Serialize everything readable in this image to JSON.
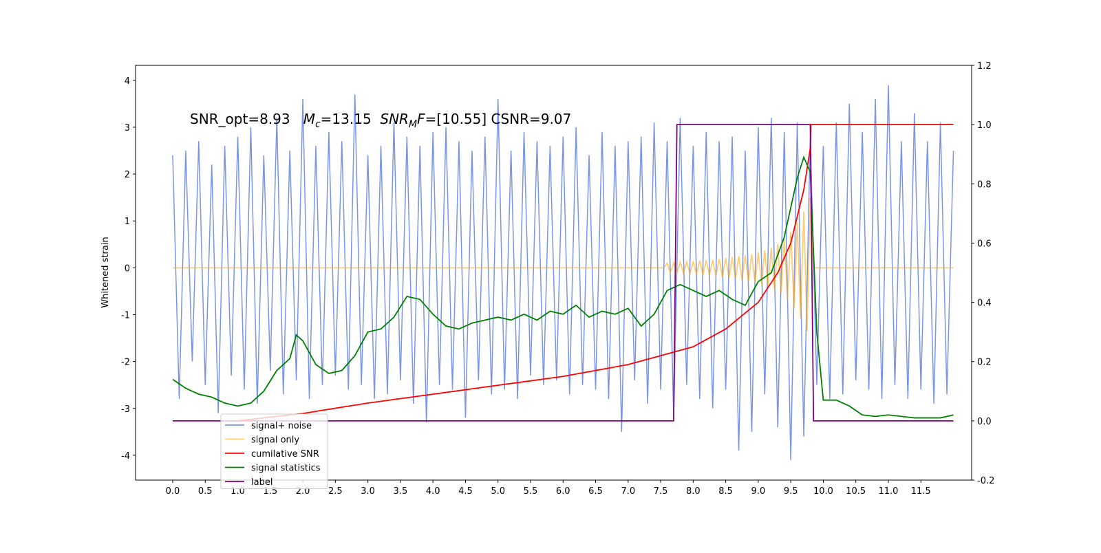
{
  "chart_data": {
    "type": "line",
    "annotation_parts": [
      "SNR_opt=8.93   ",
      "M",
      "c",
      "=13.15  ",
      "SNR",
      "M",
      "F",
      "=[10.55] CSNR=9.07"
    ],
    "ylabel": "Whitened strain",
    "xlim": [
      -0.571,
      12.28
    ],
    "ylim": [
      -4.53,
      4.32
    ],
    "y2lim": [
      -0.2,
      1.2
    ],
    "xticks": [
      {
        "value": 0,
        "label": "0.0"
      },
      0.5,
      {
        "value": 1,
        "label": "1.0"
      },
      1.5,
      {
        "value": 2,
        "label": "2.0"
      },
      2.5,
      {
        "value": 3,
        "label": "3.0"
      },
      3.5,
      {
        "value": 4,
        "label": "4.0"
      },
      4.5,
      {
        "value": 5,
        "label": "5.0"
      },
      5.5,
      {
        "value": 6,
        "label": "6.0"
      },
      6.5,
      {
        "value": 7,
        "label": "7.0"
      },
      7.5,
      {
        "value": 8,
        "label": "8.0"
      },
      8.5,
      {
        "value": 9,
        "label": "9.0"
      },
      9.5,
      {
        "value": 10,
        "label": "10.0"
      },
      10.5,
      {
        "value": 11,
        "label": "11.0"
      },
      11.5
    ],
    "yticks": [
      -4,
      -3,
      -2,
      -1,
      0,
      1,
      2,
      3,
      4
    ],
    "y2ticks": [
      -0.2,
      {
        "value": 0,
        "label": "0.0"
      },
      0.2,
      0.4,
      0.6,
      0.8,
      {
        "value": 1,
        "label": "1.0"
      },
      1.2
    ],
    "legend": "lower left",
    "series": [
      {
        "name": "signal+ noise",
        "color": "#7a94e8",
        "axis": "y",
        "x": [
          0.0,
          0.1,
          0.2,
          0.3,
          0.4,
          0.5,
          0.6,
          0.7,
          0.8,
          0.9,
          1.0,
          1.1,
          1.2,
          1.3,
          1.4,
          1.5,
          1.6,
          1.7,
          1.8,
          1.9,
          2.0,
          2.1,
          2.2,
          2.3,
          2.4,
          2.5,
          2.6,
          2.7,
          2.8,
          2.9,
          3.0,
          3.1,
          3.2,
          3.3,
          3.4,
          3.5,
          3.6,
          3.7,
          3.8,
          3.9,
          4.0,
          4.1,
          4.2,
          4.3,
          4.4,
          4.5,
          4.6,
          4.7,
          4.8,
          4.9,
          5.0,
          5.1,
          5.2,
          5.3,
          5.4,
          5.5,
          5.6,
          5.7,
          5.8,
          5.9,
          6.0,
          6.1,
          6.2,
          6.3,
          6.4,
          6.5,
          6.6,
          6.7,
          6.8,
          6.9,
          7.0,
          7.1,
          7.2,
          7.3,
          7.4,
          7.5,
          7.6,
          7.7,
          7.8,
          7.9,
          8.0,
          8.1,
          8.2,
          8.3,
          8.4,
          8.5,
          8.6,
          8.7,
          8.8,
          8.9,
          9.0,
          9.1,
          9.2,
          9.3,
          9.4,
          9.5,
          9.6,
          9.7,
          9.8,
          9.9,
          10.0,
          10.1,
          10.2,
          10.3,
          10.4,
          10.5,
          10.6,
          10.7,
          10.8,
          10.9,
          11.0,
          11.1,
          11.2,
          11.3,
          11.4,
          11.5,
          11.6,
          11.7,
          11.8,
          11.9,
          12.0
        ],
        "values": [
          2.4,
          -2.8,
          2.5,
          -2.0,
          2.7,
          -2.5,
          2.2,
          -3.1,
          2.6,
          -2.3,
          2.8,
          -2.6,
          3.0,
          -2.9,
          2.4,
          -2.2,
          3.2,
          -2.7,
          2.5,
          -2.4,
          3.6,
          -2.8,
          2.6,
          -2.5,
          2.9,
          -2.3,
          2.7,
          -2.6,
          3.7,
          -2.5,
          2.4,
          -2.8,
          2.6,
          -2.7,
          3.1,
          -2.4,
          2.8,
          -2.9,
          2.6,
          -3.3,
          2.9,
          -2.5,
          3.0,
          -2.6,
          2.7,
          -3.2,
          2.5,
          -2.4,
          2.8,
          -2.7,
          3.6,
          -2.6,
          2.5,
          -2.8,
          2.9,
          -2.3,
          2.7,
          -2.5,
          2.6,
          -2.4,
          2.8,
          -2.7,
          3.0,
          -2.5,
          2.4,
          -2.6,
          2.9,
          -2.8,
          2.6,
          -3.5,
          2.7,
          -2.4,
          2.8,
          -2.9,
          3.1,
          -2.6,
          2.7,
          -3.2,
          3.2,
          -2.5,
          2.6,
          -2.8,
          2.9,
          -3.0,
          2.7,
          -2.6,
          2.8,
          -3.9,
          2.5,
          -3.5,
          3.0,
          -2.7,
          3.2,
          -3.4,
          2.9,
          -4.1,
          3.1,
          -3.6,
          2.8,
          -2.5,
          2.6,
          -2.8,
          3.1,
          -2.7,
          3.5,
          -2.4,
          2.9,
          -2.6,
          3.6,
          -2.8,
          3.9,
          -2.5,
          2.7,
          -2.8,
          3.3,
          -2.6,
          2.7,
          -2.9,
          3.1,
          -2.7,
          2.5
        ]
      },
      {
        "name": "signal only",
        "color": "#ffa500",
        "axis": "y",
        "x": [
          0.0,
          7.55,
          7.6,
          7.65,
          7.7,
          7.75,
          7.8,
          7.85,
          7.9,
          7.95,
          8.0,
          8.05,
          8.1,
          8.15,
          8.2,
          8.25,
          8.3,
          8.35,
          8.4,
          8.45,
          8.5,
          8.55,
          8.6,
          8.65,
          8.7,
          8.75,
          8.8,
          8.85,
          8.9,
          8.95,
          9.0,
          9.05,
          9.1,
          9.15,
          9.2,
          9.25,
          9.3,
          9.35,
          9.4,
          9.45,
          9.5,
          9.55,
          9.6,
          9.65,
          9.7,
          9.75,
          9.8,
          9.85,
          12.0
        ],
        "values": [
          0,
          0,
          0.1,
          -0.1,
          0.11,
          -0.11,
          0.12,
          -0.12,
          0.13,
          -0.13,
          0.14,
          -0.14,
          0.15,
          -0.15,
          0.16,
          -0.16,
          0.17,
          -0.18,
          0.19,
          -0.2,
          0.21,
          -0.22,
          0.23,
          -0.24,
          0.25,
          -0.26,
          0.27,
          -0.28,
          0.29,
          -0.31,
          0.33,
          -0.35,
          0.37,
          -0.4,
          0.43,
          -0.47,
          0.51,
          -0.56,
          0.62,
          -0.69,
          0.77,
          -0.86,
          0.96,
          -1.08,
          1.2,
          -1.35,
          1.5,
          0,
          0
        ]
      },
      {
        "name": "cumilative SNR",
        "color": "#ff0000",
        "axis": "y2",
        "x": [
          1.0,
          2.0,
          3.0,
          4.0,
          5.0,
          6.0,
          7.0,
          7.5,
          8.0,
          8.5,
          9.0,
          9.3,
          9.5,
          9.7,
          9.8,
          9.81,
          12.0
        ],
        "values": [
          0,
          0.025,
          0.06,
          0.09,
          0.12,
          0.15,
          0.19,
          0.22,
          0.25,
          0.31,
          0.4,
          0.5,
          0.6,
          0.78,
          0.92,
          1,
          1
        ]
      },
      {
        "name": "signal statistics",
        "color": "#008000",
        "axis": "y2",
        "x": [
          0.0,
          0.2,
          0.4,
          0.6,
          0.8,
          1.0,
          1.2,
          1.4,
          1.6,
          1.8,
          1.9,
          2.0,
          2.2,
          2.4,
          2.6,
          2.8,
          3.0,
          3.2,
          3.4,
          3.6,
          3.8,
          4.0,
          4.2,
          4.4,
          4.6,
          4.8,
          5.0,
          5.2,
          5.4,
          5.6,
          5.8,
          6.0,
          6.2,
          6.4,
          6.6,
          6.8,
          7.0,
          7.2,
          7.4,
          7.6,
          7.8,
          8.0,
          8.2,
          8.4,
          8.6,
          8.8,
          9.0,
          9.2,
          9.4,
          9.6,
          9.7,
          9.8,
          9.9,
          10.0,
          10.2,
          10.4,
          10.6,
          10.8,
          11.0,
          11.2,
          11.4,
          11.6,
          11.8,
          12.0
        ],
        "values": [
          0.14,
          0.11,
          0.09,
          0.08,
          0.06,
          0.05,
          0.06,
          0.1,
          0.17,
          0.21,
          0.29,
          0.27,
          0.19,
          0.16,
          0.17,
          0.22,
          0.3,
          0.31,
          0.35,
          0.42,
          0.41,
          0.36,
          0.32,
          0.31,
          0.33,
          0.34,
          0.35,
          0.34,
          0.36,
          0.34,
          0.37,
          0.36,
          0.39,
          0.35,
          0.37,
          0.36,
          0.38,
          0.32,
          0.36,
          0.44,
          0.46,
          0.44,
          0.42,
          0.44,
          0.41,
          0.39,
          0.47,
          0.5,
          0.62,
          0.82,
          0.89,
          0.84,
          0.3,
          0.07,
          0.07,
          0.05,
          0.02,
          0.015,
          0.02,
          0.015,
          0.01,
          0.01,
          0.01,
          0.02
        ]
      },
      {
        "name": "label",
        "color": "#800080",
        "axis": "y2",
        "x": [
          0.0,
          7.7,
          7.75,
          9.8,
          9.85,
          12.0
        ],
        "values": [
          0,
          0,
          1,
          1,
          0,
          0
        ]
      }
    ]
  }
}
